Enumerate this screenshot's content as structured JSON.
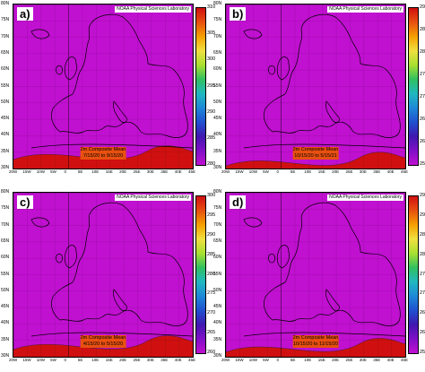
{
  "credit": "NOAA Physical Sciences Laboratory",
  "caption_line1": "2m Composite Mean",
  "lat_labels": [
    "80N",
    "75N",
    "70N",
    "65N",
    "60N",
    "55N",
    "50N",
    "45N",
    "40N",
    "35N",
    "30N"
  ],
  "lon_labels": [
    "20W",
    "15W",
    "10W",
    "5W",
    "0",
    "5E",
    "10E",
    "15E",
    "20E",
    "25E",
    "30E",
    "35E",
    "40E",
    "45E"
  ],
  "panels": [
    {
      "label": "a)",
      "dates": "7/15/20  to  9/15/20",
      "ticks": [
        "310",
        "305",
        "300",
        "295",
        "290",
        "285",
        "280"
      ],
      "colors": [
        "#d01010",
        "#e85010",
        "#f5a000",
        "#f0e040",
        "#a8e030",
        "#30c060",
        "#20b8c0",
        "#1e88d8",
        "#2050d0",
        "#4018b0",
        "#8010c8",
        "#c010d0"
      ],
      "offset": 0
    },
    {
      "label": "b)",
      "dates": "10/15/20  to  5/15/21",
      "ticks": [
        "290",
        "285",
        "280",
        "275",
        "270",
        "265",
        "260",
        "255"
      ],
      "colors": [
        "#d01010",
        "#e85010",
        "#f5a000",
        "#f0e040",
        "#a8e030",
        "#30c060",
        "#20b8c0",
        "#1e88d8",
        "#2050d0",
        "#4018b0",
        "#8010c8",
        "#c010d0"
      ],
      "offset": 0.18
    },
    {
      "label": "c)",
      "dates": "4/15/20  to  5/15/20",
      "ticks": [
        "300",
        "295",
        "290",
        "285",
        "280",
        "275",
        "270",
        "265",
        "260"
      ],
      "colors": [
        "#d01010",
        "#e85010",
        "#f5a000",
        "#f0e040",
        "#a8e030",
        "#30c060",
        "#20b8c0",
        "#1e88d8",
        "#2050d0",
        "#4018b0",
        "#8010c8",
        "#c010d0"
      ],
      "offset": 0.05
    },
    {
      "label": "d)",
      "dates": "10/15/20  to  11/15/20",
      "ticks": [
        "295",
        "290",
        "285",
        "280",
        "275",
        "270",
        "265",
        "260",
        "255"
      ],
      "colors": [
        "#d01010",
        "#e85010",
        "#f5a000",
        "#f0e040",
        "#a8e030",
        "#30c060",
        "#20b8c0",
        "#1e88d8",
        "#2050d0",
        "#4018b0",
        "#8010c8",
        "#c010d0"
      ],
      "offset": 0.12
    }
  ]
}
